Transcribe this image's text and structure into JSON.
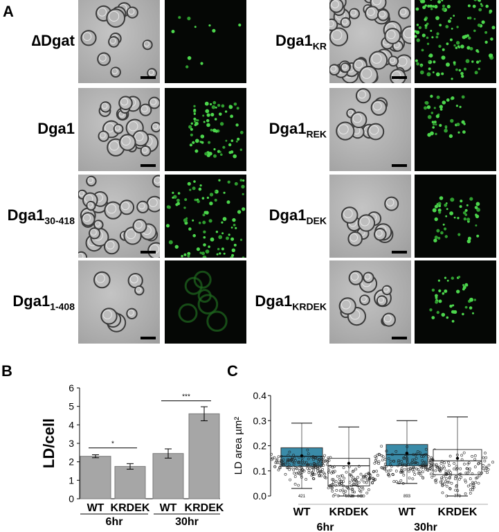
{
  "panel_a": {
    "letter": "A",
    "left_rows": [
      {
        "label": "∆Dgat",
        "sub": ""
      },
      {
        "label": "Dga1",
        "sub": ""
      },
      {
        "label": "Dga1",
        "sub": "30-418"
      },
      {
        "label": "Dga1",
        "sub": "1-408"
      }
    ],
    "right_rows": [
      {
        "label": "Dga1",
        "sub": "KR"
      },
      {
        "label": "Dga1",
        "sub": "REK"
      },
      {
        "label": "Dga1",
        "sub": "DEK"
      },
      {
        "label": "Dga1",
        "sub": "KRDEK"
      }
    ]
  },
  "panel_b": {
    "letter": "B",
    "chart_data": {
      "type": "bar",
      "ylabel": "LD/cell",
      "ylim": [
        0,
        6
      ],
      "yticks": [
        0,
        1,
        2,
        3,
        4,
        5,
        6
      ],
      "categories": [
        "WT",
        "KRDEK",
        "WT",
        "KRDEK"
      ],
      "groups": [
        "6hr",
        "30hr"
      ],
      "values": [
        2.3,
        1.75,
        2.45,
        4.6
      ],
      "errors": [
        0.08,
        0.15,
        0.25,
        0.38
      ],
      "significance": [
        {
          "between": [
            0,
            1
          ],
          "label": "*"
        },
        {
          "between": [
            2,
            3
          ],
          "label": "***"
        }
      ],
      "color": "#a6a6a6"
    }
  },
  "panel_c": {
    "letter": "C",
    "chart_data": {
      "type": "box-swarm",
      "ylabel": "LD area µm²",
      "ylim": [
        0.0,
        0.4
      ],
      "yticks": [
        "0.0",
        "0.1",
        "0.2",
        "0.3",
        "0.4"
      ],
      "categories": [
        "WT",
        "KRDEK",
        "WT",
        "KRDEK"
      ],
      "groups": [
        "6hr",
        "30hr"
      ],
      "n": [
        "421",
        "832",
        "893",
        "770"
      ],
      "boxes": [
        {
          "q1": 0.118,
          "median": 0.158,
          "q3": 0.192,
          "mean": 0.16,
          "wlow": 0.03,
          "whigh": 0.29,
          "fill": "#3a8ba8"
        },
        {
          "q1": 0.04,
          "median": 0.12,
          "q3": 0.15,
          "mean": 0.13,
          "wlow": 0.0,
          "whigh": 0.275,
          "fill": "#ffffff"
        },
        {
          "q1": 0.12,
          "median": 0.165,
          "q3": 0.205,
          "mean": 0.17,
          "wlow": 0.05,
          "whigh": 0.3,
          "fill": "#3a8ba8"
        },
        {
          "q1": 0.085,
          "median": 0.14,
          "q3": 0.185,
          "mean": 0.15,
          "wlow": 0.0,
          "whigh": 0.315,
          "fill": "#ffffff"
        }
      ]
    }
  }
}
